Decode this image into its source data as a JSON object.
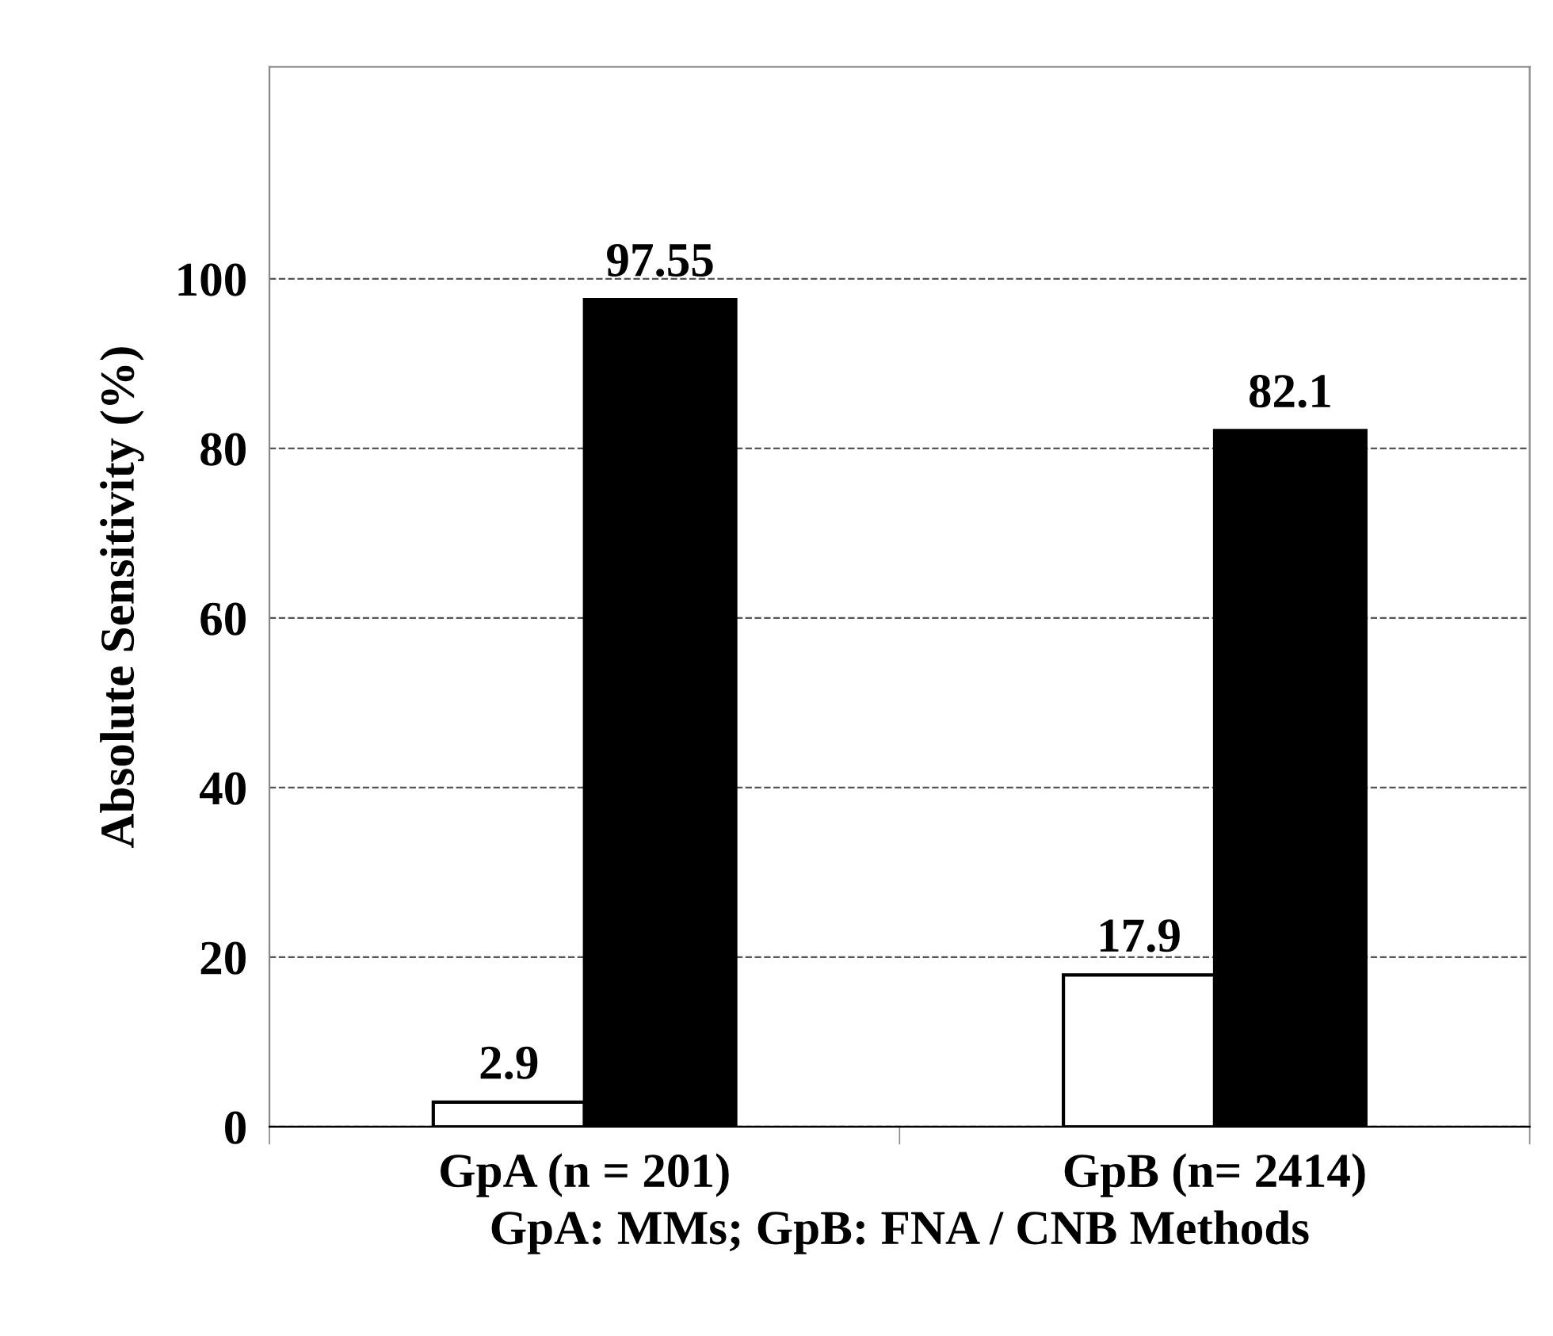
{
  "chart_data": {
    "type": "bar",
    "xlabel": "GpA: MMs; GpB: FNA / CNB Methods",
    "ylabel": "Absolute Sensitivity (%)",
    "categories": [
      "GpA (n = 201)",
      "GpB (n= 2414)"
    ],
    "series": [
      {
        "color": "#ffffff",
        "values": [
          2.9,
          17.9
        ]
      },
      {
        "color": "#000000",
        "values": [
          97.55,
          82.1
        ]
      }
    ],
    "ylim": [
      0,
      125
    ],
    "yticks": [
      0,
      20,
      40,
      60,
      80,
      100
    ],
    "grid": "y",
    "data_labels": true,
    "legend": false
  }
}
